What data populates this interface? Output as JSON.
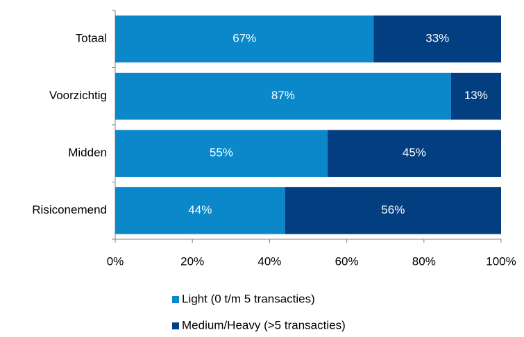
{
  "chart_data": {
    "type": "bar",
    "orientation": "horizontal",
    "stacked": true,
    "categories": [
      "Totaal",
      "Voorzichtig",
      "Midden",
      "Risiconemend"
    ],
    "series": [
      {
        "name": "Light (0 t/m 5 transacties)",
        "color": "#0a88c9",
        "values": [
          67,
          87,
          55,
          44
        ],
        "value_labels": [
          "67%",
          "87%",
          "55%",
          "44%"
        ]
      },
      {
        "name": "Medium/Heavy (>5 transacties)",
        "color": "#023e80",
        "values": [
          33,
          13,
          45,
          56
        ],
        "value_labels": [
          "33%",
          "13%",
          "45%",
          "56%"
        ]
      }
    ],
    "xlim": [
      0,
      100
    ],
    "xticks": [
      {
        "value": 0,
        "label": "0%"
      },
      {
        "value": 20,
        "label": "20%"
      },
      {
        "value": 40,
        "label": "40%"
      },
      {
        "value": 60,
        "label": "60%"
      },
      {
        "value": 80,
        "label": "80%"
      },
      {
        "value": 100,
        "label": "100%"
      }
    ],
    "legend": "bottom"
  }
}
